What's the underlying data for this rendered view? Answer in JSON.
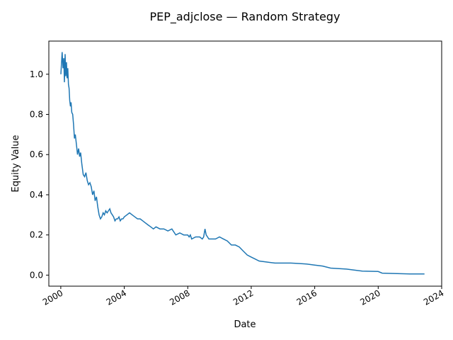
{
  "chart_data": {
    "type": "line",
    "title": "PEP_adjclose — Random Strategy",
    "xlabel": "Date",
    "ylabel": "Equity Value",
    "xlim": [
      "1999-04-01",
      "2024-01-01"
    ],
    "ylim": [
      -0.055,
      1.165
    ],
    "x_ticks": [
      "2000",
      "2004",
      "2008",
      "2012",
      "2016",
      "2020",
      "2024"
    ],
    "y_ticks": [
      "0.0",
      "0.2",
      "0.4",
      "0.6",
      "0.8",
      "1.0"
    ],
    "grid": false,
    "line_color": "#1f77b4",
    "series": [
      {
        "x": [
          "2000-01-03",
          "2000-02-01",
          "2000-02-20",
          "2000-03-10",
          "2000-03-25",
          "2000-04-10",
          "2000-04-25",
          "2000-05-10",
          "2000-05-25",
          "2000-06-10",
          "2000-06-25",
          "2000-07-10",
          "2000-07-25",
          "2000-08-10",
          "2000-08-25",
          "2000-09-10",
          "2000-10-01",
          "2000-10-20",
          "2000-11-10",
          "2000-12-01",
          "2001-01-01",
          "2001-01-20",
          "2001-02-15",
          "2001-03-10",
          "2001-04-01",
          "2001-05-01",
          "2001-06-01",
          "2001-07-01",
          "2001-08-01",
          "2001-09-01",
          "2001-10-01",
          "2001-11-01",
          "2001-12-01",
          "2002-01-01",
          "2002-02-01",
          "2002-03-01",
          "2002-04-01",
          "2002-05-01",
          "2002-06-01",
          "2002-07-01",
          "2002-08-01",
          "2002-09-01",
          "2002-10-01",
          "2002-11-01",
          "2002-12-01",
          "2003-01-01",
          "2003-02-01",
          "2003-03-01",
          "2003-04-01",
          "2003-05-01",
          "2003-06-01",
          "2003-07-01",
          "2003-08-01",
          "2003-09-01",
          "2003-10-01",
          "2003-11-01",
          "2003-12-01",
          "2004-01-01",
          "2004-03-01",
          "2004-05-01",
          "2004-07-01",
          "2004-09-01",
          "2004-11-01",
          "2005-01-01",
          "2005-03-01",
          "2005-05-01",
          "2005-07-01",
          "2005-09-01",
          "2005-11-01",
          "2006-01-01",
          "2006-04-01",
          "2006-07-01",
          "2006-10-01",
          "2007-01-01",
          "2007-04-01",
          "2007-07-01",
          "2007-10-01",
          "2008-01-01",
          "2008-02-01",
          "2008-03-01",
          "2008-04-01",
          "2008-07-01",
          "2008-10-01",
          "2008-12-01",
          "2009-01-01",
          "2009-02-01",
          "2009-03-01",
          "2009-04-01",
          "2009-05-01",
          "2009-07-01",
          "2009-10-01",
          "2010-01-01",
          "2010-04-01",
          "2010-07-01",
          "2010-10-01",
          "2011-01-01",
          "2011-04-01",
          "2011-07-01",
          "2011-10-01",
          "2012-01-01",
          "2012-04-01",
          "2012-07-01",
          "2013-01-01",
          "2013-07-01",
          "2014-01-01",
          "2014-07-01",
          "2015-01-01",
          "2015-07-01",
          "2016-01-01",
          "2016-07-01",
          "2017-01-01",
          "2018-01-01",
          "2019-01-01",
          "2020-01-01",
          "2020-04-01",
          "2021-01-01",
          "2022-01-01",
          "2022-12-01"
        ],
        "y": [
          1.0,
          1.11,
          1.03,
          1.08,
          0.96,
          1.1,
          0.99,
          1.06,
          0.98,
          1.03,
          0.95,
          0.93,
          0.87,
          0.84,
          0.86,
          0.81,
          0.8,
          0.75,
          0.68,
          0.7,
          0.64,
          0.6,
          0.63,
          0.59,
          0.61,
          0.55,
          0.5,
          0.49,
          0.51,
          0.47,
          0.45,
          0.46,
          0.44,
          0.4,
          0.42,
          0.37,
          0.39,
          0.34,
          0.3,
          0.28,
          0.29,
          0.31,
          0.3,
          0.32,
          0.31,
          0.32,
          0.33,
          0.31,
          0.3,
          0.29,
          0.27,
          0.28,
          0.28,
          0.29,
          0.27,
          0.28,
          0.28,
          0.29,
          0.3,
          0.31,
          0.3,
          0.29,
          0.28,
          0.28,
          0.27,
          0.26,
          0.25,
          0.24,
          0.23,
          0.24,
          0.23,
          0.23,
          0.22,
          0.23,
          0.2,
          0.21,
          0.2,
          0.2,
          0.19,
          0.2,
          0.18,
          0.19,
          0.19,
          0.18,
          0.19,
          0.23,
          0.2,
          0.19,
          0.18,
          0.18,
          0.18,
          0.19,
          0.18,
          0.17,
          0.15,
          0.15,
          0.14,
          0.12,
          0.1,
          0.09,
          0.08,
          0.07,
          0.065,
          0.06,
          0.06,
          0.06,
          0.058,
          0.055,
          0.05,
          0.045,
          0.035,
          0.03,
          0.02,
          0.018,
          0.01,
          0.008,
          0.006,
          0.006
        ]
      }
    ]
  }
}
